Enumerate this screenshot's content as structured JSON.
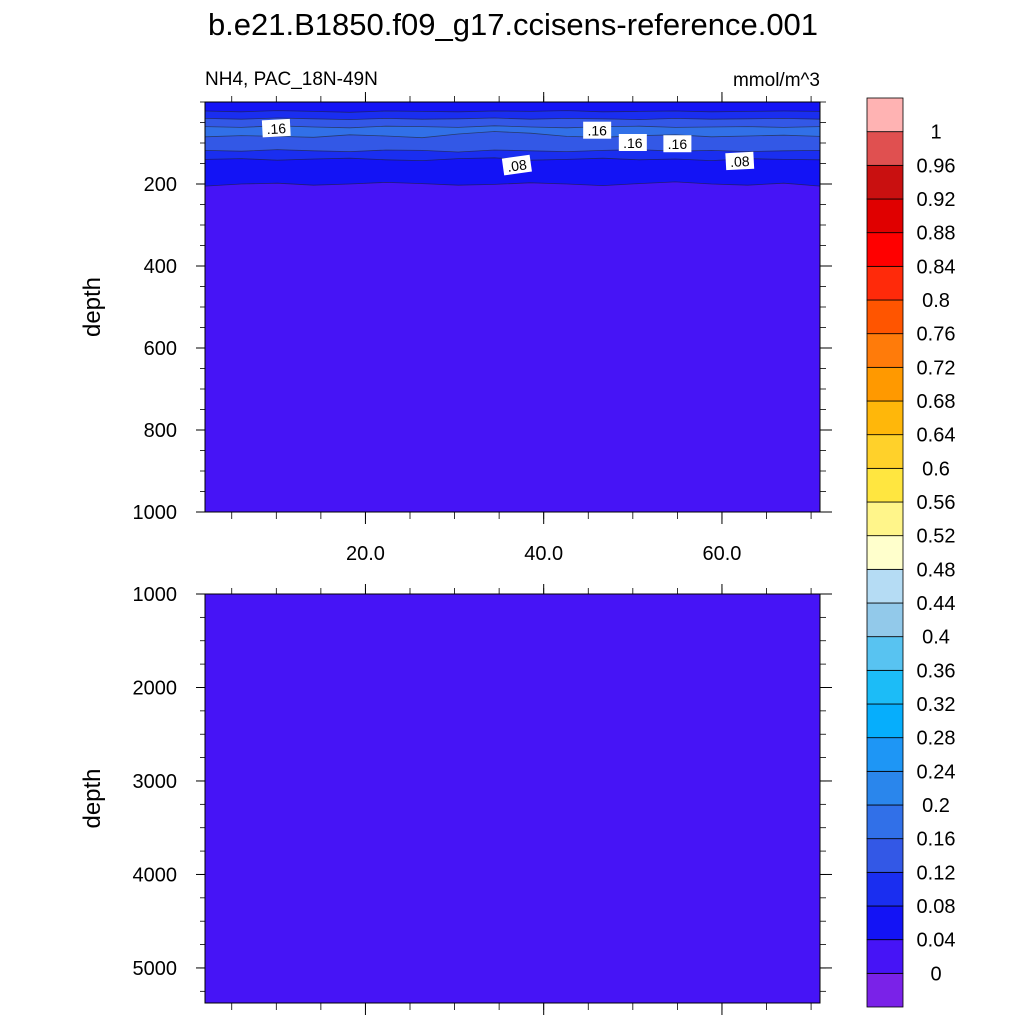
{
  "title": "b.e21.B1850.f09_g17.ccisens-reference.001",
  "chart_data": {
    "type": "heatmap",
    "variable_label": "NH4, PAC_18N-49N",
    "units": "mmol/m^3",
    "x": {
      "range": [
        2,
        71
      ],
      "tick_labels": [
        "20.0",
        "40.0",
        "60.0"
      ],
      "ticks": [
        20,
        40,
        60
      ],
      "minor_step": 5
    },
    "colorbar": {
      "levels": [
        0,
        0.04,
        0.08,
        0.12,
        0.16,
        0.2,
        0.24,
        0.28,
        0.32,
        0.36,
        0.4,
        0.44,
        0.48,
        0.52,
        0.56,
        0.6,
        0.64,
        0.68,
        0.72,
        0.76,
        0.8,
        0.84,
        0.88,
        0.92,
        0.96,
        1
      ],
      "tick_labels": [
        "0",
        "0.04",
        "0.08",
        "0.12",
        "0.16",
        "0.2",
        "0.24",
        "0.28",
        "0.32",
        "0.36",
        "0.4",
        "0.44",
        "0.48",
        "0.52",
        "0.56",
        "0.6",
        "0.64",
        "0.68",
        "0.72",
        "0.76",
        "0.8",
        "0.84",
        "0.88",
        "0.92",
        "0.96",
        "1"
      ],
      "colors": [
        "#7a22e8",
        "#4614f6",
        "#1313f5",
        "#1a2ef0",
        "#3358e6",
        "#3170e8",
        "#2a86ec",
        "#1e96f5",
        "#06aefc",
        "#1cbcf7",
        "#58c3f1",
        "#92c9ea",
        "#b5dcf4",
        "#ffffcc",
        "#fff58a",
        "#ffe640",
        "#ffd12a",
        "#ffb70a",
        "#ff9900",
        "#ff7b0a",
        "#ff5500",
        "#ff2a0a",
        "#ff0000",
        "#e00000",
        "#c91010",
        "#e05050",
        "#ffb3b3"
      ]
    },
    "panels": [
      {
        "name": "upper",
        "ylabel": "depth",
        "ylim": [
          0,
          1000
        ],
        "y_ticks": [
          200,
          400,
          600,
          800,
          1000
        ],
        "y_tick_labels": [
          "200",
          "400",
          "600",
          "800",
          "1000"
        ],
        "y_minor_step": 50,
        "show_x_tick_labels": true,
        "layers": [
          {
            "value": 0.06,
            "color": "#1313f5",
            "top": [
              0
            ],
            "bottom": [
              205,
              200,
              198,
              203,
              200,
              196,
              199,
              203,
              201,
              197,
              200,
              204,
              199,
              195,
              200,
              203,
              198,
              205
            ]
          },
          {
            "value": 0.1,
            "color": "#1a2ef0",
            "top": [
              0
            ],
            "bottom": [
              140,
              138,
              142,
              139,
              137,
              141,
              143,
              138,
              136,
              142,
              140,
              137,
              141,
              139,
              143,
              138,
              140,
              141
            ]
          },
          {
            "value": 0.14,
            "color": "#3358e6",
            "top": [
              0
            ],
            "bottom": [
              118,
              120,
              116,
              119,
              121,
              117,
              118,
              122,
              117,
              119,
              121,
              118,
              116,
              120,
              118,
              121,
              119,
              118
            ]
          },
          {
            "value": 0.18,
            "color": "#3170e8",
            "top": [
              0
            ],
            "bottom": [
              85,
              82,
              84,
              86,
              80,
              83,
              87,
              78,
              72,
              76,
              84,
              86,
              82,
              80,
              85,
              83,
              81,
              84
            ]
          },
          {
            "value": 0.14,
            "color": "#3358e6",
            "top": [
              0
            ],
            "bottom": [
              60,
              62,
              58,
              61,
              63,
              59,
              60,
              62,
              58,
              61,
              63,
              60,
              59,
              62,
              61,
              60,
              62,
              60
            ]
          },
          {
            "value": 0.1,
            "color": "#1a2ef0",
            "top": [
              0
            ],
            "bottom": [
              40,
              42,
              39,
              41,
              43,
              40,
              42,
              41,
              39,
              42,
              40,
              41,
              43,
              40,
              42,
              41,
              40,
              42
            ]
          },
          {
            "value": 0.06,
            "color": "#1313f5",
            "top": [
              0
            ],
            "bottom": [
              22,
              24,
              21,
              23,
              25,
              22,
              23,
              24,
              22,
              23,
              21,
              24,
              23,
              22,
              24,
              23,
              22,
              23
            ]
          }
        ],
        "background_color": "#4614f6",
        "contour_labels": [
          {
            "text": ".16",
            "x": 10,
            "y": 65,
            "angle": -3
          },
          {
            "text": ".16",
            "x": 46,
            "y": 70,
            "angle": 0
          },
          {
            "text": ".16",
            "x": 50,
            "y": 100,
            "angle": 0
          },
          {
            "text": ".16",
            "x": 55,
            "y": 103,
            "angle": 0
          },
          {
            "text": ".08",
            "x": 37,
            "y": 155,
            "angle": -8
          },
          {
            "text": ".08",
            "x": 62,
            "y": 145,
            "angle": -3
          }
        ]
      },
      {
        "name": "lower",
        "ylabel": "depth",
        "ylim": [
          1000,
          5375
        ],
        "y_ticks": [
          1000,
          2000,
          3000,
          4000,
          5000
        ],
        "y_tick_labels": [
          "1000",
          "2000",
          "3000",
          "4000",
          "5000"
        ],
        "y_minor_step": 250,
        "show_x_tick_labels": false,
        "layers": [],
        "background_color": "#4614f6",
        "contour_labels": []
      }
    ]
  }
}
